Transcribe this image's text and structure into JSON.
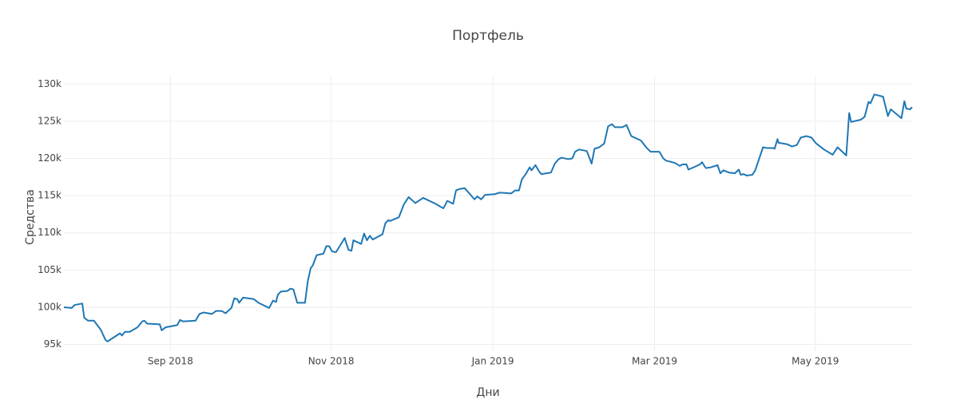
{
  "chart_data": {
    "type": "line",
    "title": "Портфель",
    "x_label": "Дни",
    "y_label": "Средства",
    "xlim": [
      2018.557,
      2019.433
    ],
    "ylim": [
      94100,
      131100
    ],
    "xticks": [
      {
        "value": 2018.667,
        "label": "Sep 2018"
      },
      {
        "value": 2018.833,
        "label": "Nov 2018"
      },
      {
        "value": 2019.0,
        "label": "Jan 2019"
      },
      {
        "value": 2019.167,
        "label": "Mar 2019"
      },
      {
        "value": 2019.333,
        "label": "May 2019"
      }
    ],
    "yticks": [
      {
        "value": 95000,
        "label": "95k"
      },
      {
        "value": 100000,
        "label": "100k"
      },
      {
        "value": 105000,
        "label": "105k"
      },
      {
        "value": 110000,
        "label": "110k"
      },
      {
        "value": 115000,
        "label": "115k"
      },
      {
        "value": 120000,
        "label": "120k"
      },
      {
        "value": 125000,
        "label": "125k"
      },
      {
        "value": 130000,
        "label": "130k"
      }
    ],
    "grid": true,
    "color": "#1f77b4",
    "x": [
      2018.557,
      2018.565,
      2018.568,
      2018.576,
      2018.578,
      2018.582,
      2018.588,
      2018.595,
      2018.6,
      2018.602,
      2018.615,
      2018.617,
      2018.62,
      2018.625,
      2018.633,
      2018.638,
      2018.64,
      2018.643,
      2018.656,
      2018.658,
      2018.662,
      2018.674,
      2018.677,
      2018.68,
      2018.693,
      2018.697,
      2018.701,
      2018.71,
      2018.714,
      2018.72,
      2018.724,
      2018.73,
      2018.733,
      2018.736,
      2018.738,
      2018.742,
      2018.753,
      2018.758,
      2018.769,
      2018.773,
      2018.776,
      2018.778,
      2018.781,
      2018.788,
      2018.791,
      2018.794,
      2018.798,
      2018.806,
      2018.809,
      2018.812,
      2018.814,
      2018.818,
      2018.825,
      2018.828,
      2018.831,
      2018.834,
      2018.838,
      2018.847,
      2018.851,
      2018.854,
      2018.856,
      2018.864,
      2018.867,
      2018.87,
      2018.873,
      2018.876,
      2018.883,
      2018.886,
      2018.889,
      2018.892,
      2018.894,
      2018.903,
      2018.908,
      2018.913,
      2018.92,
      2018.928,
      2018.941,
      2018.946,
      2018.949,
      2018.953,
      2018.959,
      2018.962,
      2018.966,
      2018.971,
      2018.981,
      2018.984,
      2018.988,
      2018.992,
      2019.002,
      2019.007,
      2019.019,
      2019.023,
      2019.027,
      2019.03,
      2019.034,
      2019.038,
      2019.04,
      2019.044,
      2019.048,
      2019.05,
      2019.06,
      2019.064,
      2019.068,
      2019.071,
      2019.078,
      2019.082,
      2019.085,
      2019.089,
      2019.097,
      2019.1,
      2019.102,
      2019.105,
      2019.11,
      2019.115,
      2019.119,
      2019.123,
      2019.126,
      2019.134,
      2019.138,
      2019.143,
      2019.148,
      2019.153,
      2019.159,
      2019.163,
      2019.172,
      2019.176,
      2019.179,
      2019.188,
      2019.193,
      2019.196,
      2019.2,
      2019.202,
      2019.209,
      2019.214,
      2019.216,
      2019.22,
      2019.225,
      2019.232,
      2019.235,
      2019.238,
      2019.244,
      2019.25,
      2019.254,
      2019.256,
      2019.259,
      2019.262,
      2019.268,
      2019.271,
      2019.279,
      2019.283,
      2019.29,
      2019.291,
      2019.294,
      2019.295,
      2019.304,
      2019.309,
      2019.314,
      2019.318,
      2019.324,
      2019.329,
      2019.334,
      2019.342,
      2019.351,
      2019.356,
      2019.365,
      2019.368,
      2019.37,
      2019.38,
      2019.384,
      2019.388,
      2019.39,
      2019.394,
      2019.403,
      2019.408,
      2019.411,
      2019.422,
      2019.425,
      2019.427,
      2019.431,
      2019.433
    ],
    "values": [
      100000,
      99900,
      100300,
      100500,
      98600,
      98200,
      98200,
      97000,
      95600,
      95400,
      96500,
      96200,
      96700,
      96700,
      97300,
      98100,
      98200,
      97800,
      97700,
      96900,
      97300,
      97600,
      98300,
      98100,
      98200,
      99100,
      99300,
      99100,
      99500,
      99500,
      99200,
      99900,
      101200,
      101100,
      100600,
      101300,
      101100,
      100600,
      99900,
      100900,
      100700,
      101700,
      102100,
      102200,
      102500,
      102400,
      100600,
      100600,
      103600,
      105300,
      105600,
      107000,
      107200,
      108200,
      108200,
      107500,
      107400,
      109300,
      107700,
      107600,
      109000,
      108500,
      109900,
      109000,
      109600,
      109100,
      109600,
      109800,
      111300,
      111700,
      111600,
      112100,
      113800,
      114800,
      114000,
      114700,
      113900,
      113500,
      113300,
      114300,
      113900,
      115700,
      115900,
      116000,
      114500,
      114900,
      114500,
      115100,
      115200,
      115400,
      115300,
      115700,
      115700,
      117200,
      117900,
      118800,
      118400,
      119100,
      118200,
      117900,
      118100,
      119300,
      119900,
      120100,
      119900,
      120000,
      120900,
      121200,
      121000,
      120000,
      119300,
      121300,
      121500,
      122000,
      124300,
      124600,
      124200,
      124200,
      124500,
      123000,
      122700,
      122400,
      121400,
      120900,
      120900,
      120000,
      119700,
      119400,
      119000,
      119200,
      119200,
      118500,
      118900,
      119200,
      119500,
      118700,
      118800,
      119100,
      118000,
      118400,
      118100,
      118000,
      118500,
      117800,
      117900,
      117700,
      117800,
      118400,
      121500,
      121400,
      121400,
      121300,
      122600,
      122100,
      121900,
      121600,
      121800,
      122800,
      123000,
      122800,
      122000,
      121200,
      120500,
      121500,
      120400,
      126100,
      124900,
      125200,
      125600,
      127600,
      127400,
      128600,
      128300,
      125700,
      126600,
      125400,
      127700,
      126700,
      126600,
      126900
    ]
  }
}
